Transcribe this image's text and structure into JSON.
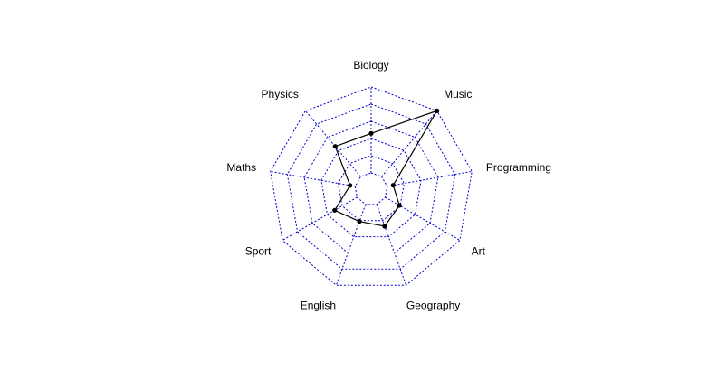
{
  "chart_data": {
    "type": "radar",
    "title": "",
    "categories": [
      "Biology",
      "Music",
      "Programming",
      "Art",
      "Geography",
      "English",
      "Sport",
      "Maths",
      "Physics"
    ],
    "series": [
      {
        "values": [
          0.46,
          1.0,
          0.07,
          0.19,
          0.27,
          0.21,
          0.3,
          0.06,
          0.46
        ],
        "color": "#000000"
      }
    ],
    "rlim": [
      0,
      1
    ],
    "levels": 5,
    "inner_hole": 0.2,
    "grid": true,
    "grid_color": "#0000cd",
    "grid_style": "dotted"
  }
}
